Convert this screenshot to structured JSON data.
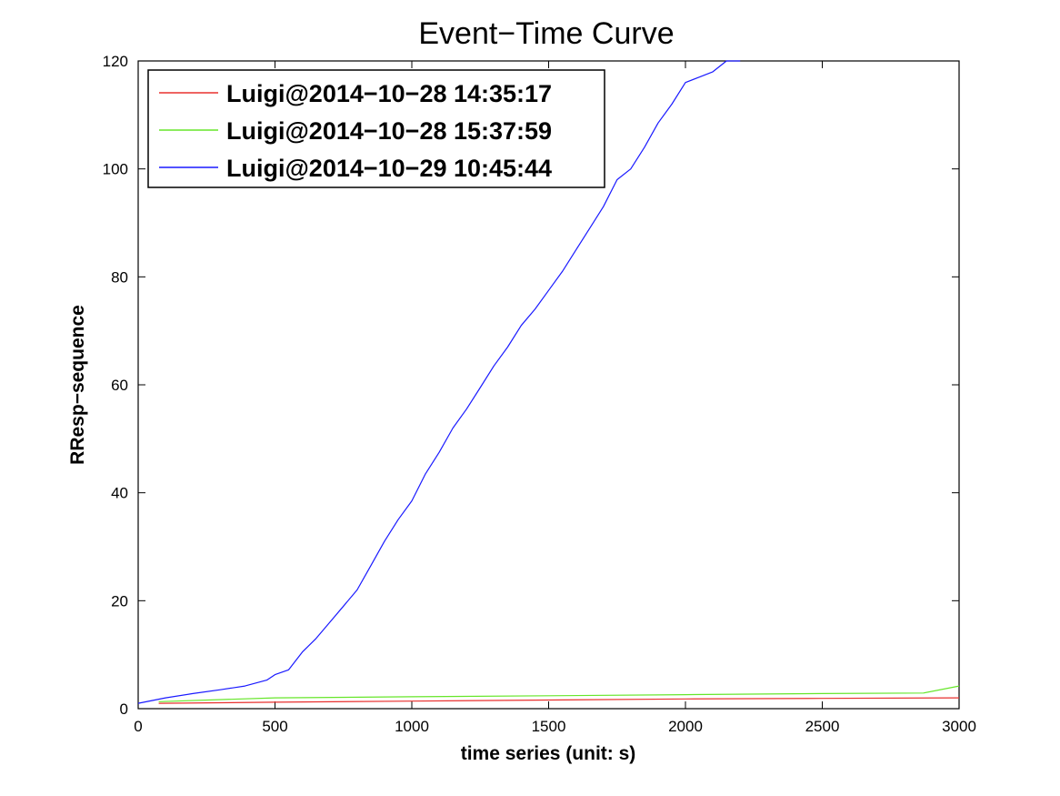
{
  "chart_data": {
    "type": "line",
    "title": "Event−Time Curve",
    "xlabel": "time series (unit: s)",
    "ylabel": "RResp−sequence",
    "xlim": [
      0,
      3000
    ],
    "ylim": [
      0,
      120
    ],
    "xticks": [
      0,
      500,
      1000,
      1500,
      2000,
      2500,
      3000
    ],
    "yticks": [
      0,
      20,
      40,
      60,
      80,
      100,
      120
    ],
    "grid": false,
    "legend_position": "top-left",
    "series": [
      {
        "name": "Luigi@2014−10−28 14:35:17",
        "color": "#e8302e",
        "x": [
          75,
          500,
          1000,
          1500,
          2000,
          2500,
          3000
        ],
        "y": [
          1,
          1.2,
          1.4,
          1.6,
          1.8,
          1.9,
          2.0
        ]
      },
      {
        "name": "Luigi@2014−10−28 15:37:59",
        "color": "#66e62a",
        "x": [
          75,
          500,
          1000,
          1500,
          2000,
          2500,
          2870,
          3000
        ],
        "y": [
          1.3,
          2.0,
          2.2,
          2.4,
          2.6,
          2.8,
          2.9,
          4.2
        ]
      },
      {
        "name": "Luigi@2014−10−29 10:45:44",
        "color": "#1a1aff",
        "x": [
          0,
          100,
          200,
          300,
          390,
          470,
          500,
          550,
          600,
          650,
          700,
          750,
          800,
          850,
          900,
          950,
          1000,
          1050,
          1100,
          1150,
          1200,
          1250,
          1300,
          1350,
          1400,
          1450,
          1500,
          1550,
          1600,
          1650,
          1700,
          1750,
          1800,
          1850,
          1900,
          1950,
          2000,
          2050,
          2100,
          2150,
          2200
        ],
        "y": [
          1,
          2,
          2.8,
          3.5,
          4.2,
          5.3,
          6.3,
          7.2,
          10.5,
          13,
          16,
          19,
          22,
          26.5,
          31,
          35,
          38.5,
          43.5,
          47.5,
          52,
          55.5,
          59.5,
          63.5,
          67,
          71,
          74,
          77.5,
          81,
          85,
          89,
          93,
          98,
          100,
          104,
          108.5,
          112,
          116,
          117,
          118,
          120,
          120
        ]
      }
    ]
  }
}
